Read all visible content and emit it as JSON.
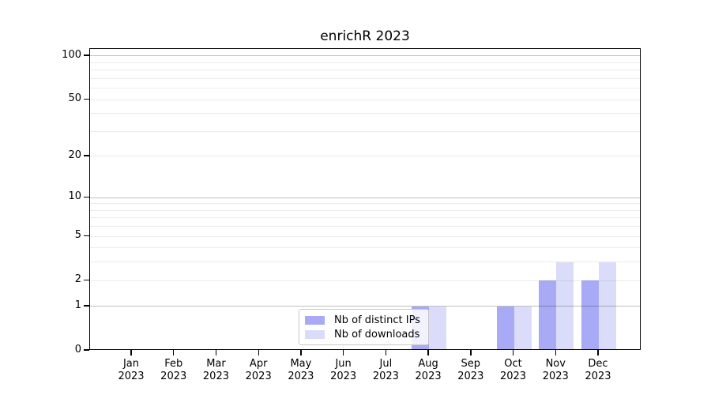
{
  "title": "enrichR 2023",
  "chart_data": {
    "type": "bar",
    "title": "enrichR 2023",
    "categories": [
      "Jan 2023",
      "Feb 2023",
      "Mar 2023",
      "Apr 2023",
      "May 2023",
      "Jun 2023",
      "Jul 2023",
      "Aug 2023",
      "Sep 2023",
      "Oct 2023",
      "Nov 2023",
      "Dec 2023"
    ],
    "x_tick_months": [
      "Jan",
      "Feb",
      "Mar",
      "Apr",
      "May",
      "Jun",
      "Jul",
      "Aug",
      "Sep",
      "Oct",
      "Nov",
      "Dec"
    ],
    "x_tick_year": "2023",
    "series": [
      {
        "name": "Nb of distinct IPs",
        "color": "#a8aaf6",
        "values": [
          0,
          0,
          0,
          0,
          0,
          0,
          0,
          1,
          0,
          1,
          2,
          2
        ]
      },
      {
        "name": "Nb of downloads",
        "color": "#dbdcf9",
        "values": [
          0,
          0,
          0,
          0,
          0,
          0,
          0,
          1,
          0,
          1,
          3,
          3
        ]
      }
    ],
    "xlabel": "",
    "ylabel": "",
    "y_scale": "log1p",
    "ylim": [
      0,
      112
    ],
    "y_ticks": [
      0,
      1,
      2,
      5,
      10,
      20,
      50,
      100
    ],
    "grid": "on",
    "grid_major_values": [
      1,
      10,
      100
    ],
    "grid_minor_values": [
      2,
      3,
      4,
      5,
      6,
      7,
      8,
      9,
      20,
      30,
      40,
      50,
      60,
      70,
      80,
      90
    ],
    "grid_major_color": "rgba(0,0,0,0.25)",
    "grid_minor_color": "rgba(0,0,0,0.08)",
    "axis_color": "#000000",
    "legend_position": "lower center"
  }
}
